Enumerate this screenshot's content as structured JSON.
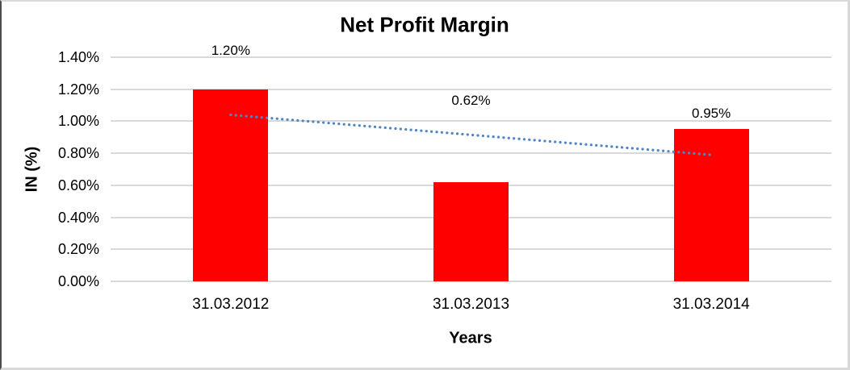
{
  "chart_data": {
    "type": "bar",
    "title": "Net Profit Margin",
    "xlabel": "Years",
    "ylabel": "IN (%)",
    "categories": [
      "31.03.2012",
      "31.03.2013",
      "31.03.2014"
    ],
    "values": [
      1.2,
      0.62,
      0.95
    ],
    "data_labels": [
      "1.20%",
      "0.62%",
      "0.95%"
    ],
    "ytick_values": [
      0.0,
      0.2,
      0.4,
      0.6,
      0.8,
      1.0,
      1.2,
      1.4
    ],
    "ytick_labels": [
      "0.00%",
      "0.20%",
      "0.40%",
      "0.60%",
      "0.80%",
      "1.00%",
      "1.20%",
      "1.40%"
    ],
    "ylim": [
      0,
      1.4
    ],
    "grid": true,
    "legend": false,
    "bar_color": "#FF0000",
    "gridline_color": "#D9D9D9",
    "text_color": "#000000",
    "trendline": {
      "type": "linear",
      "style": "dotted",
      "color": "#4F86C6",
      "start_value": 1.04,
      "end_value": 0.79
    }
  }
}
